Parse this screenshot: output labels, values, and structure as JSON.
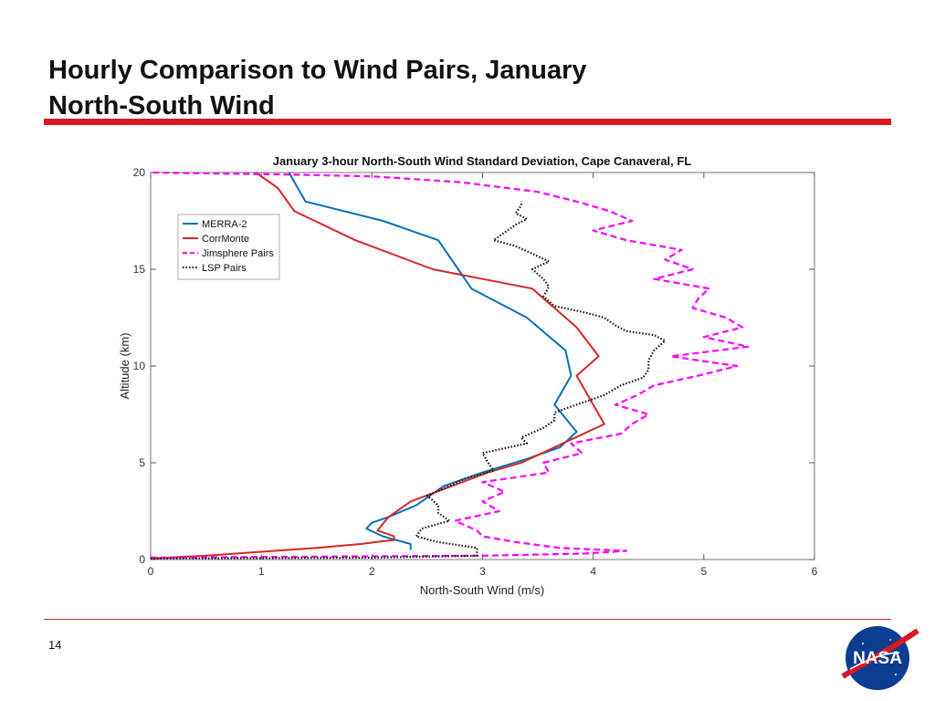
{
  "slide": {
    "title_line1": "Hourly Comparison to Wind Pairs, January",
    "title_line2": "North-South Wind",
    "page_number": "14",
    "accent_color": "#d71920"
  },
  "logo": {
    "text": "NASA"
  },
  "chart_data": {
    "type": "line",
    "title": "January 3-hour North-South Wind Standard Deviation, Cape Canaveral, FL",
    "xlabel": "North-South Wind (m/s)",
    "ylabel": "Altitude (km)",
    "xlim": [
      0,
      6
    ],
    "ylim": [
      0,
      20
    ],
    "xticks": [
      0,
      1,
      2,
      3,
      4,
      5,
      6
    ],
    "yticks": [
      0,
      5,
      10,
      15,
      20
    ],
    "grid": false,
    "legend_position": "upper-left",
    "series": [
      {
        "name": "MERRA-2",
        "color": "#0072bd",
        "style": "solid",
        "points": [
          [
            2.35,
            0.5
          ],
          [
            2.35,
            0.8
          ],
          [
            2.1,
            1.2
          ],
          [
            1.95,
            1.6
          ],
          [
            2.0,
            1.9
          ],
          [
            2.15,
            2.2
          ],
          [
            2.4,
            2.8
          ],
          [
            2.55,
            3.4
          ],
          [
            2.65,
            3.8
          ],
          [
            3.0,
            4.5
          ],
          [
            3.4,
            5.2
          ],
          [
            3.7,
            5.8
          ],
          [
            3.85,
            6.6
          ],
          [
            3.65,
            8.0
          ],
          [
            3.8,
            9.5
          ],
          [
            3.75,
            10.8
          ],
          [
            3.4,
            12.5
          ],
          [
            2.9,
            14.0
          ],
          [
            2.6,
            16.5
          ],
          [
            2.1,
            17.5
          ],
          [
            1.4,
            18.5
          ],
          [
            1.3,
            19.5
          ],
          [
            1.25,
            20.0
          ]
        ]
      },
      {
        "name": "CorrMonte",
        "color": "#d62728",
        "style": "solid",
        "points": [
          [
            0.0,
            0.05
          ],
          [
            0.5,
            0.2
          ],
          [
            1.0,
            0.4
          ],
          [
            1.5,
            0.6
          ],
          [
            1.9,
            0.8
          ],
          [
            2.1,
            0.95
          ],
          [
            2.2,
            1.0
          ],
          [
            2.2,
            1.2
          ],
          [
            2.05,
            1.5
          ],
          [
            2.15,
            2.2
          ],
          [
            2.35,
            3.0
          ],
          [
            3.05,
            4.5
          ],
          [
            3.35,
            5.0
          ],
          [
            4.1,
            7.0
          ],
          [
            4.0,
            8.0
          ],
          [
            3.85,
            9.5
          ],
          [
            4.05,
            10.5
          ],
          [
            3.85,
            12.0
          ],
          [
            3.45,
            14.0
          ],
          [
            2.55,
            15.0
          ],
          [
            1.85,
            16.5
          ],
          [
            1.3,
            18.0
          ],
          [
            1.15,
            19.2
          ],
          [
            0.95,
            20.0
          ]
        ]
      },
      {
        "name": "Jimsphere Pairs",
        "color": "#ff00ff",
        "style": "dashed",
        "points": [
          [
            0.0,
            0.1
          ],
          [
            3.0,
            0.2
          ],
          [
            3.9,
            0.3
          ],
          [
            4.3,
            0.45
          ],
          [
            3.7,
            0.6
          ],
          [
            3.3,
            0.9
          ],
          [
            3.0,
            1.2
          ],
          [
            2.95,
            1.5
          ],
          [
            2.75,
            2.0
          ],
          [
            3.15,
            2.5
          ],
          [
            3.0,
            3.0
          ],
          [
            3.2,
            3.5
          ],
          [
            3.0,
            4.0
          ],
          [
            3.6,
            4.5
          ],
          [
            3.55,
            5.0
          ],
          [
            3.9,
            5.5
          ],
          [
            3.8,
            6.0
          ],
          [
            4.25,
            6.5
          ],
          [
            4.35,
            7.0
          ],
          [
            4.5,
            7.5
          ],
          [
            4.2,
            8.0
          ],
          [
            4.4,
            8.5
          ],
          [
            4.55,
            9.0
          ],
          [
            4.95,
            9.5
          ],
          [
            5.3,
            10.0
          ],
          [
            4.7,
            10.5
          ],
          [
            5.4,
            11.0
          ],
          [
            5.0,
            11.5
          ],
          [
            5.35,
            12.0
          ],
          [
            5.2,
            12.5
          ],
          [
            4.9,
            13.0
          ],
          [
            4.95,
            13.5
          ],
          [
            5.05,
            14.0
          ],
          [
            4.55,
            14.5
          ],
          [
            4.9,
            15.0
          ],
          [
            4.65,
            15.5
          ],
          [
            4.8,
            16.0
          ],
          [
            4.3,
            16.5
          ],
          [
            4.0,
            17.0
          ],
          [
            4.35,
            17.5
          ],
          [
            4.15,
            18.0
          ],
          [
            3.85,
            18.5
          ],
          [
            3.5,
            19.0
          ],
          [
            2.8,
            19.5
          ],
          [
            2.0,
            19.8
          ],
          [
            1.2,
            19.9
          ],
          [
            0.0,
            20.0
          ]
        ]
      },
      {
        "name": "LSP Pairs",
        "color": "#111111",
        "style": "dotted",
        "points": [
          [
            0.0,
            0.05
          ],
          [
            2.0,
            0.1
          ],
          [
            2.95,
            0.2
          ],
          [
            2.95,
            0.6
          ],
          [
            2.6,
            0.9
          ],
          [
            2.4,
            1.2
          ],
          [
            2.45,
            1.6
          ],
          [
            2.7,
            2.0
          ],
          [
            2.6,
            2.4
          ],
          [
            2.6,
            2.8
          ],
          [
            2.5,
            3.3
          ],
          [
            2.7,
            3.8
          ],
          [
            2.85,
            4.2
          ],
          [
            3.1,
            4.6
          ],
          [
            3.05,
            5.0
          ],
          [
            3.0,
            5.5
          ],
          [
            3.4,
            6.0
          ],
          [
            3.35,
            6.3
          ],
          [
            3.55,
            6.8
          ],
          [
            3.65,
            7.2
          ],
          [
            3.65,
            7.6
          ],
          [
            3.85,
            8.0
          ],
          [
            4.1,
            8.5
          ],
          [
            4.25,
            9.0
          ],
          [
            4.45,
            9.4
          ],
          [
            4.5,
            9.8
          ],
          [
            4.5,
            10.3
          ],
          [
            4.55,
            10.8
          ],
          [
            4.65,
            11.3
          ],
          [
            4.55,
            11.6
          ],
          [
            4.3,
            11.8
          ],
          [
            4.2,
            12.1
          ],
          [
            4.1,
            12.5
          ],
          [
            3.9,
            12.8
          ],
          [
            3.65,
            13.1
          ],
          [
            3.55,
            13.6
          ],
          [
            3.6,
            14.1
          ],
          [
            3.55,
            14.5
          ],
          [
            3.45,
            15.0
          ],
          [
            3.6,
            15.4
          ],
          [
            3.45,
            15.8
          ],
          [
            3.3,
            16.2
          ],
          [
            3.1,
            16.5
          ],
          [
            3.2,
            16.9
          ],
          [
            3.3,
            17.3
          ],
          [
            3.4,
            17.6
          ],
          [
            3.3,
            17.9
          ],
          [
            3.35,
            18.3
          ],
          [
            3.35,
            18.5
          ]
        ]
      }
    ]
  }
}
